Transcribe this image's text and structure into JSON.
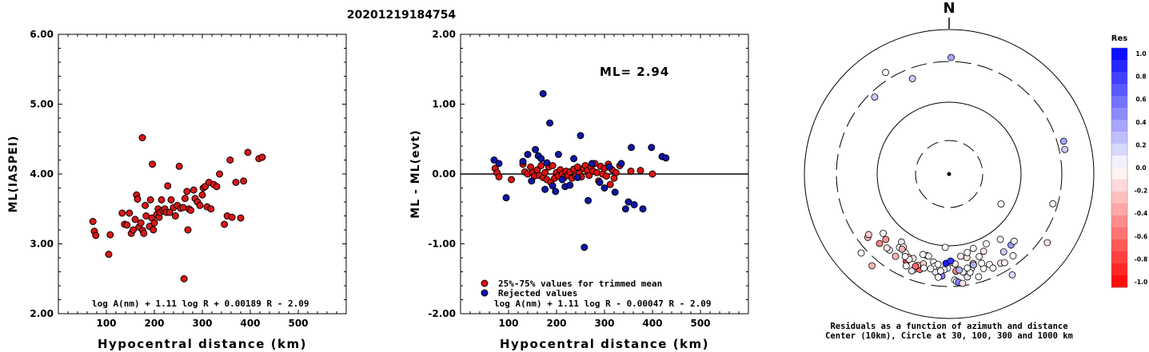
{
  "title": "20201219184754",
  "chart_data": [
    {
      "type": "scatter",
      "xlabel": "Hypocentral distance (km)",
      "ylabel": "ML(IASPEI)",
      "xlim": [
        0,
        600
      ],
      "ylim": [
        2.0,
        6.0
      ],
      "xticks": [
        "100",
        "200",
        "300",
        "400",
        "500"
      ],
      "yticks": [
        "2.00",
        "3.00",
        "4.00",
        "5.00",
        "6.00"
      ],
      "formula": "log A(nm) + 1.11 log R + 0.00189 R - 2.09",
      "points": [
        [
          72,
          3.32
        ],
        [
          75,
          3.18
        ],
        [
          78,
          3.12
        ],
        [
          105,
          2.85
        ],
        [
          108,
          3.13
        ],
        [
          133,
          3.44
        ],
        [
          138,
          3.28
        ],
        [
          143,
          3.27
        ],
        [
          148,
          3.44
        ],
        [
          152,
          3.15
        ],
        [
          156,
          3.2
        ],
        [
          160,
          3.35
        ],
        [
          163,
          3.7
        ],
        [
          165,
          3.64
        ],
        [
          168,
          3.24
        ],
        [
          172,
          3.3
        ],
        [
          175,
          4.52
        ],
        [
          176,
          3.19
        ],
        [
          178,
          3.15
        ],
        [
          181,
          3.55
        ],
        [
          183,
          3.4
        ],
        [
          190,
          3.25
        ],
        [
          192,
          3.63
        ],
        [
          195,
          3.37
        ],
        [
          196,
          4.14
        ],
        [
          198,
          3.2
        ],
        [
          200,
          3.3
        ],
        [
          205,
          3.42
        ],
        [
          208,
          3.5
        ],
        [
          210,
          3.38
        ],
        [
          212,
          3.45
        ],
        [
          215,
          3.63
        ],
        [
          218,
          3.48
        ],
        [
          222,
          3.5
        ],
        [
          225,
          3.45
        ],
        [
          228,
          3.83
        ],
        [
          232,
          3.45
        ],
        [
          235,
          3.63
        ],
        [
          240,
          3.52
        ],
        [
          244,
          3.4
        ],
        [
          248,
          3.55
        ],
        [
          252,
          4.11
        ],
        [
          255,
          3.51
        ],
        [
          260,
          3.52
        ],
        [
          262,
          2.5
        ],
        [
          264,
          3.65
        ],
        [
          268,
          3.75
        ],
        [
          270,
          3.2
        ],
        [
          272,
          3.5
        ],
        [
          276,
          3.48
        ],
        [
          282,
          3.77
        ],
        [
          285,
          3.65
        ],
        [
          290,
          3.6
        ],
        [
          295,
          3.55
        ],
        [
          300,
          3.7
        ],
        [
          302,
          3.8
        ],
        [
          306,
          3.82
        ],
        [
          310,
          3.53
        ],
        [
          314,
          3.88
        ],
        [
          318,
          3.5
        ],
        [
          324,
          3.85
        ],
        [
          330,
          3.82
        ],
        [
          336,
          4.0
        ],
        [
          346,
          3.28
        ],
        [
          352,
          3.4
        ],
        [
          358,
          4.2
        ],
        [
          362,
          3.38
        ],
        [
          370,
          3.88
        ],
        [
          380,
          3.37
        ],
        [
          386,
          3.9
        ],
        [
          395,
          4.31
        ],
        [
          418,
          4.22
        ],
        [
          425,
          4.24
        ]
      ]
    },
    {
      "type": "scatter",
      "xlabel": "Hypocentral distance (km)",
      "ylabel": "ML - ML(evt)",
      "xlim": [
        0,
        600
      ],
      "ylim": [
        -2.0,
        2.0
      ],
      "xticks": [
        "100",
        "200",
        "300",
        "400",
        "500"
      ],
      "yticks": [
        "-2.00",
        "-1.00",
        "0.00",
        "1.00",
        "2.00"
      ],
      "ml_label": "ML= 2.94",
      "formula": "log A(nm) + 1.11 log R - 0.00047 R - 2.09",
      "legend": [
        "25%-75% values for trimmed mean",
        "Rejected values"
      ],
      "series": [
        {
          "name": "25%-75% values for trimmed mean",
          "color": "#dd1111",
          "points": [
            [
              72,
              0.08
            ],
            [
              76,
              0.02
            ],
            [
              80,
              -0.04
            ],
            [
              106,
              -0.08
            ],
            [
              130,
              0.14
            ],
            [
              134,
              0.03
            ],
            [
              140,
              0.0
            ],
            [
              146,
              0.1
            ],
            [
              150,
              0.02
            ],
            [
              154,
              -0.03
            ],
            [
              160,
              0.06
            ],
            [
              164,
              -0.02
            ],
            [
              168,
              0.12
            ],
            [
              172,
              -0.05
            ],
            [
              176,
              0.02
            ],
            [
              180,
              -0.08
            ],
            [
              184,
              0.1
            ],
            [
              188,
              -0.12
            ],
            [
              192,
              0.12
            ],
            [
              196,
              -0.06
            ],
            [
              200,
              0.02
            ],
            [
              204,
              -0.03
            ],
            [
              208,
              0.06
            ],
            [
              212,
              0.0
            ],
            [
              216,
              -0.05
            ],
            [
              220,
              0.04
            ],
            [
              224,
              -0.02
            ],
            [
              228,
              0.03
            ],
            [
              232,
              -0.06
            ],
            [
              236,
              0.07
            ],
            [
              240,
              -0.03
            ],
            [
              244,
              0.1
            ],
            [
              248,
              0.01
            ],
            [
              252,
              -0.04
            ],
            [
              256,
              0.08
            ],
            [
              260,
              0.12
            ],
            [
              264,
              0.05
            ],
            [
              268,
              -0.02
            ],
            [
              272,
              0.1
            ],
            [
              276,
              0.04
            ],
            [
              280,
              0.15
            ],
            [
              284,
              0.02
            ],
            [
              288,
              -0.1
            ],
            [
              292,
              0.11
            ],
            [
              296,
              0.0
            ],
            [
              300,
              0.08
            ],
            [
              304,
              -0.03
            ],
            [
              308,
              0.14
            ],
            [
              312,
              -0.15
            ],
            [
              316,
              0.06
            ],
            [
              320,
              -0.06
            ],
            [
              324,
              0.02
            ],
            [
              332,
              0.12
            ],
            [
              355,
              0.04
            ],
            [
              375,
              0.05
            ],
            [
              400,
              0.0
            ]
          ]
        },
        {
          "name": "Rejected values",
          "color": "#0e15a8",
          "points": [
            [
              70,
              0.2
            ],
            [
              80,
              0.15
            ],
            [
              95,
              -0.34
            ],
            [
              130,
              0.18
            ],
            [
              140,
              0.28
            ],
            [
              148,
              -0.1
            ],
            [
              156,
              0.35
            ],
            [
              162,
              0.26
            ],
            [
              168,
              0.22
            ],
            [
              172,
              1.15
            ],
            [
              176,
              -0.22
            ],
            [
              180,
              0.16
            ],
            [
              186,
              0.73
            ],
            [
              192,
              -0.17
            ],
            [
              198,
              -0.25
            ],
            [
              204,
              0.28
            ],
            [
              212,
              -0.08
            ],
            [
              218,
              -0.18
            ],
            [
              228,
              -0.16
            ],
            [
              236,
              0.22
            ],
            [
              244,
              -0.05
            ],
            [
              250,
              0.55
            ],
            [
              258,
              -1.05
            ],
            [
              266,
              -0.38
            ],
            [
              274,
              0.15
            ],
            [
              290,
              -0.12
            ],
            [
              300,
              -0.2
            ],
            [
              310,
              0.1
            ],
            [
              322,
              -0.26
            ],
            [
              335,
              0.15
            ],
            [
              344,
              -0.5
            ],
            [
              350,
              -0.4
            ],
            [
              356,
              0.38
            ],
            [
              362,
              -0.44
            ],
            [
              380,
              -0.5
            ],
            [
              398,
              0.38
            ],
            [
              420,
              0.25
            ],
            [
              428,
              0.23
            ]
          ]
        }
      ]
    },
    {
      "type": "scatter",
      "title": "N",
      "legend_title": "Res",
      "color_scale": [
        "1.0",
        "0.8",
        "0.6",
        "0.4",
        "0.2",
        "0.0",
        "-0.2",
        "-0.4",
        "-0.6",
        "-0.8",
        "-1.0"
      ],
      "caption_line1": "Residuals as a function of azimuth and distance",
      "caption_line2": "Center (10km), Circle at 30, 100, 300 and 1000 km",
      "stations": [
        [
          1,
          1,
          0.35
        ],
        [
          2,
          148,
          0.15
        ],
        [
          3,
          228,
          0.0
        ],
        [
          4,
          328,
          0.0
        ],
        [
          5,
          339,
          0.2
        ],
        [
          6,
          106,
          0.0
        ],
        [
          7,
          74,
          0.35
        ],
        [
          8,
          78,
          0.2
        ],
        [
          9,
          220,
          -0.3
        ],
        [
          10,
          316,
          0.2
        ],
        [
          11,
          142,
          0.0
        ],
        [
          12,
          125,
          -0.1
        ],
        [
          13,
          183,
          0.0
        ],
        [
          14,
          152,
          0.0
        ],
        [
          15,
          214,
          0.0
        ],
        [
          16,
          120,
          0.0
        ],
        [
          17,
          209,
          0.0
        ],
        [
          18,
          200,
          -0.4
        ],
        [
          19,
          225,
          -0.5
        ],
        [
          20,
          232,
          -0.3
        ],
        [
          21,
          224,
          -0.4
        ],
        [
          22,
          206,
          -0.2
        ],
        [
          23,
          213,
          -0.3
        ],
        [
          24,
          206,
          -0.8
        ],
        [
          25,
          203,
          -0.1
        ],
        [
          26,
          197,
          -0.6
        ],
        [
          27,
          196,
          -0.2
        ],
        [
          28,
          195,
          0.0
        ],
        [
          29,
          181,
          0.0
        ],
        [
          30,
          172,
          0.0
        ],
        [
          31,
          156,
          0.0
        ],
        [
          32,
          167,
          0.0
        ],
        [
          33,
          188,
          0.1
        ],
        [
          34,
          176,
          -0.5
        ],
        [
          35,
          184,
          0.5
        ],
        [
          36,
          160,
          0.0
        ],
        [
          37,
          178,
          0.0
        ],
        [
          38,
          165,
          -0.2
        ],
        [
          39,
          186,
          0.0
        ],
        [
          40,
          170,
          0.1
        ],
        [
          41,
          205,
          0.0
        ],
        [
          42,
          177,
          0.0
        ],
        [
          43,
          176,
          0.0
        ],
        [
          44,
          175,
          0.5
        ],
        [
          45,
          173,
          -0.1
        ],
        [
          46,
          168,
          0.0
        ],
        [
          47,
          164,
          0.0
        ],
        [
          48,
          160,
          0.0
        ],
        [
          49,
          168,
          -0.1
        ],
        [
          50,
          160,
          0.0
        ],
        [
          51,
          155,
          0.0
        ],
        [
          52,
          150,
          -0.1
        ],
        [
          53,
          148,
          0.0
        ],
        [
          54,
          145,
          0.2
        ],
        [
          55,
          142,
          0.0
        ],
        [
          56,
          139,
          0.4
        ],
        [
          57,
          136,
          0.0
        ],
        [
          58,
          218,
          0.1
        ],
        [
          59,
          233,
          -0.2
        ],
        [
          60,
          228,
          0.0
        ],
        [
          61,
          215,
          0.1
        ],
        [
          62,
          195,
          0.2
        ],
        [
          63,
          190,
          0.0
        ],
        [
          64,
          183,
          0.0
        ],
        [
          65,
          176,
          -0.1
        ],
        [
          66,
          174,
          0.3
        ],
        [
          67,
          189,
          0.0
        ],
        [
          68,
          169,
          0.0
        ],
        [
          69,
          172,
          -0.1
        ],
        [
          70,
          165,
          0.3
        ],
        [
          71,
          182,
          0.9
        ],
        [
          72,
          179,
          0.8
        ],
        [
          73,
          167,
          0.0
        ],
        [
          74,
          199,
          -0.3
        ],
        [
          75,
          187,
          0.0
        ],
        [
          76,
          191,
          0.0
        ],
        [
          77,
          208,
          0.0
        ],
        [
          78,
          212,
          0.0
        ],
        [
          79,
          220,
          -0.1
        ],
        [
          80,
          194,
          0.0
        ],
        [
          81,
          201,
          0.1
        ],
        [
          82,
          185,
          0.0
        ],
        [
          83,
          162,
          0.0
        ],
        [
          84,
          156,
          -0.1
        ],
        [
          85,
          200,
          -0.6
        ],
        [
          86,
          212,
          -0.3
        ],
        [
          87,
          205,
          0.0
        ],
        [
          88,
          198,
          0.0
        ]
      ]
    }
  ]
}
